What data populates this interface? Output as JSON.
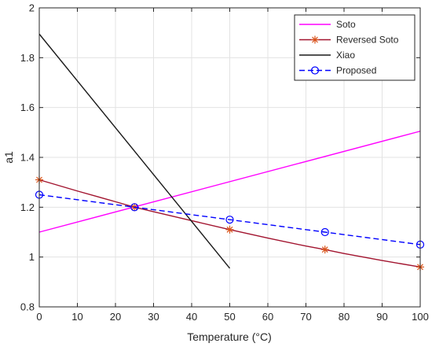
{
  "chart_data": {
    "type": "line",
    "xlabel": "Temperature (°C)",
    "ylabel": "a1",
    "xlim": [
      0,
      100
    ],
    "ylim": [
      0.8,
      2
    ],
    "xticks": [
      0,
      10,
      20,
      30,
      40,
      50,
      60,
      70,
      80,
      90,
      100
    ],
    "yticks": [
      0.8,
      1,
      1.2,
      1.4,
      1.6,
      1.8,
      2
    ],
    "xtick_labels": [
      "0",
      "10",
      "20",
      "30",
      "40",
      "50",
      "60",
      "70",
      "80",
      "90",
      "100"
    ],
    "ytick_labels": [
      "0.8",
      "1",
      "1.2",
      "1.4",
      "1.6",
      "1.8",
      "2"
    ],
    "grid": true,
    "legend_position": "top-right",
    "series": [
      {
        "name": "Soto",
        "color": "#ff00ff",
        "style": "solid",
        "marker": "none",
        "x": [
          0,
          100
        ],
        "y": [
          1.1,
          1.505
        ]
      },
      {
        "name": "Reversed Soto",
        "color": "#a2142f",
        "style": "solid",
        "marker": "asterisk",
        "marker_color": "#d95319",
        "x": [
          0,
          25,
          50,
          75,
          100
        ],
        "y": [
          1.31,
          1.2,
          1.11,
          1.03,
          0.96
        ],
        "line_x": [
          0,
          10,
          20,
          25,
          30,
          40,
          50,
          60,
          70,
          75,
          80,
          90,
          100
        ],
        "line_y": [
          1.31,
          1.265,
          1.222,
          1.2,
          1.182,
          1.146,
          1.11,
          1.076,
          1.044,
          1.03,
          1.014,
          0.986,
          0.96
        ]
      },
      {
        "name": "Xiao",
        "color": "#1a1a1a",
        "style": "solid",
        "marker": "none",
        "x": [
          0,
          50
        ],
        "y": [
          1.895,
          0.955
        ]
      },
      {
        "name": "Proposed",
        "color": "#0000ff",
        "style": "dashed",
        "marker": "circle",
        "x": [
          0,
          25,
          50,
          75,
          100
        ],
        "y": [
          1.25,
          1.2,
          1.15,
          1.1,
          1.05
        ]
      }
    ]
  }
}
